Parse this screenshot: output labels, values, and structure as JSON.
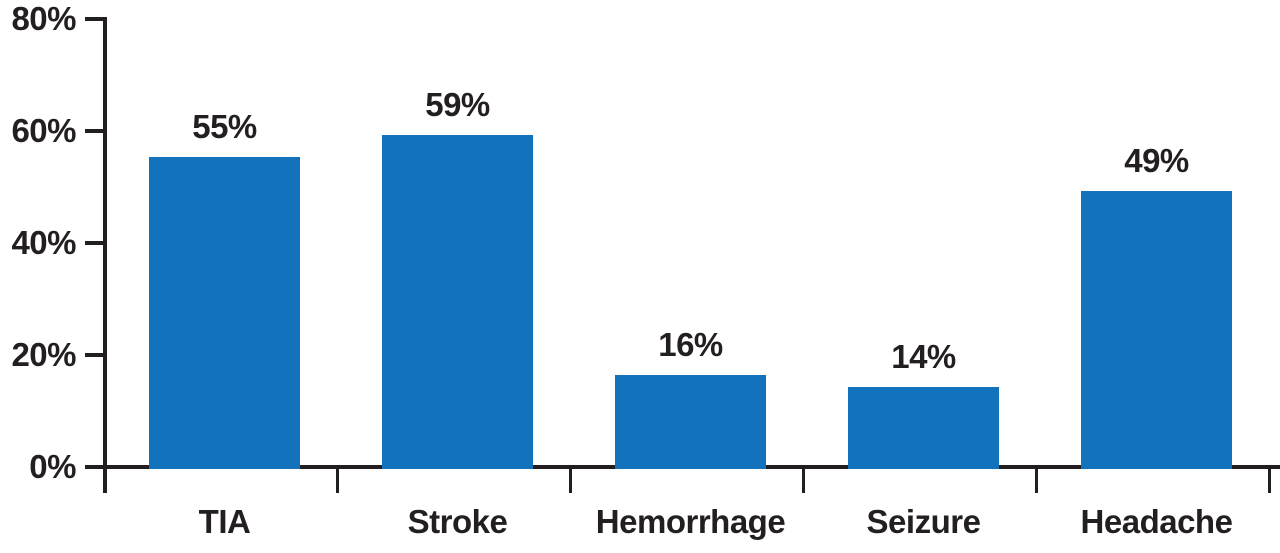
{
  "chart_data": {
    "type": "bar",
    "title": "",
    "xlabel": "",
    "ylabel": "",
    "categories": [
      "TIA",
      "Stroke",
      "Hemorrhage",
      "Seizure",
      "Headache"
    ],
    "values": [
      55,
      59,
      16,
      14,
      49
    ],
    "value_labels": [
      "55%",
      "59%",
      "16%",
      "14%",
      "49%"
    ],
    "ylim": [
      0,
      80
    ],
    "yticks": [
      {
        "value": 0,
        "label": "0%"
      },
      {
        "value": 20,
        "label": "20%"
      },
      {
        "value": 40,
        "label": "40%"
      },
      {
        "value": 60,
        "label": "60%"
      },
      {
        "value": 80,
        "label": "80%"
      }
    ],
    "grid": false,
    "legend": "none",
    "colors": {
      "bar": "#1273BC",
      "axis": "#231F20",
      "text": "#231F20"
    }
  }
}
